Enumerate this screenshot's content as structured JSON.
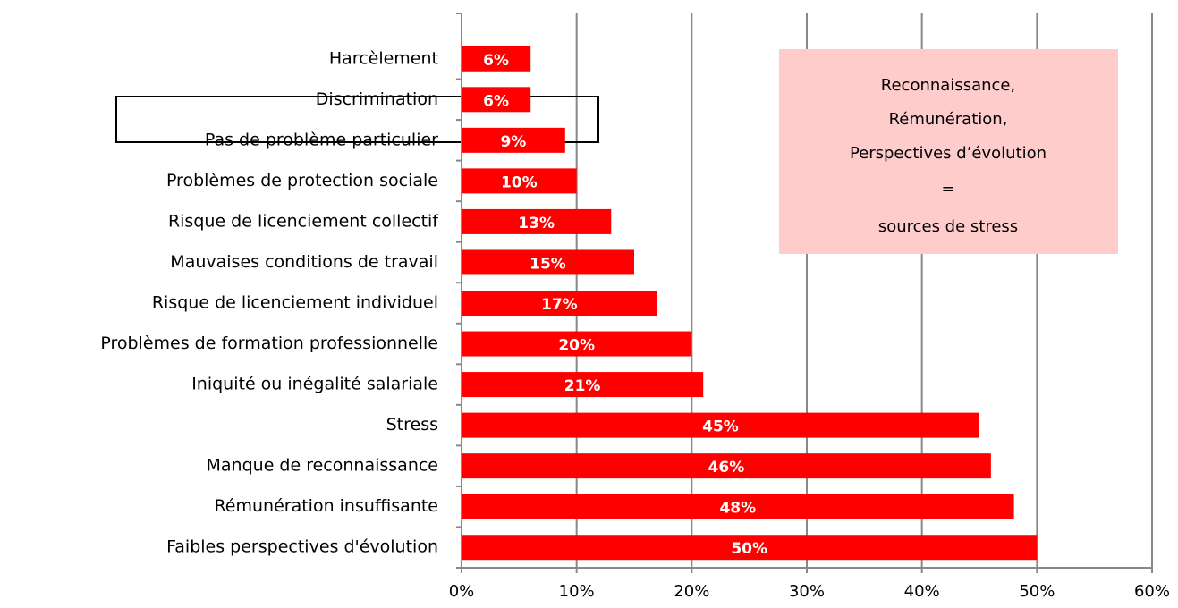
{
  "chart_data": {
    "type": "bar",
    "orientation": "horizontal",
    "categories": [
      "Harcèlement",
      "Discrimination",
      "Pas de problème particulier",
      "Problèmes de protection sociale",
      "Risque de licenciement collectif",
      "Mauvaises conditions de travail",
      "Risque de licenciement individuel",
      "Problèmes de formation professionnelle",
      "Iniquité ou inégalité salariale",
      "Stress",
      "Manque de reconnaissance",
      "Rémunération insuffisante",
      "Faibles perspectives d'évolution"
    ],
    "values": [
      6,
      6,
      9,
      10,
      13,
      15,
      17,
      20,
      21,
      45,
      46,
      48,
      50
    ],
    "value_labels": [
      "6%",
      "6%",
      "9%",
      "10%",
      "13%",
      "15%",
      "17%",
      "20%",
      "21%",
      "45%",
      "46%",
      "48%",
      "50%"
    ],
    "color": "#ff0000",
    "xlim": [
      0,
      60
    ],
    "xticks": [
      {
        "value": 0,
        "label": "0%"
      },
      {
        "value": 10,
        "label": "10%"
      },
      {
        "value": 20,
        "label": "20%"
      },
      {
        "value": 30,
        "label": "30%"
      },
      {
        "value": 40,
        "label": "40%"
      },
      {
        "value": 50,
        "label": "50%"
      },
      {
        "value": 60,
        "label": "60%"
      }
    ],
    "grid": true,
    "annotation": [
      "Reconnaissance,",
      "Rémunération,",
      "Perspectives d’évolution",
      "=",
      "sources de stress"
    ]
  }
}
